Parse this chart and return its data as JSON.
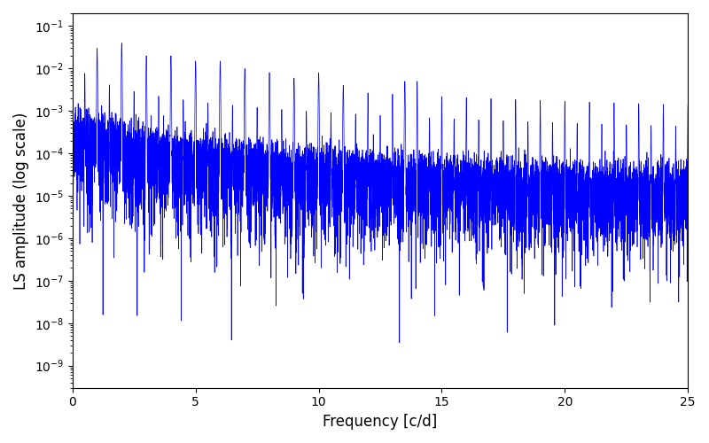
{
  "xlabel": "Frequency [c/d]",
  "ylabel": "LS amplitude (log scale)",
  "line_color": "#0000ff",
  "line_width": 0.5,
  "xlim": [
    0,
    25
  ],
  "ylim": [
    3e-10,
    0.2
  ],
  "freq_max": 25.0,
  "n_points": 10000,
  "seed": 123,
  "background_color": "#ffffff",
  "figsize": [
    8.0,
    5.0
  ],
  "dpi": 100,
  "xlabel_fontsize": 12,
  "ylabel_fontsize": 12
}
